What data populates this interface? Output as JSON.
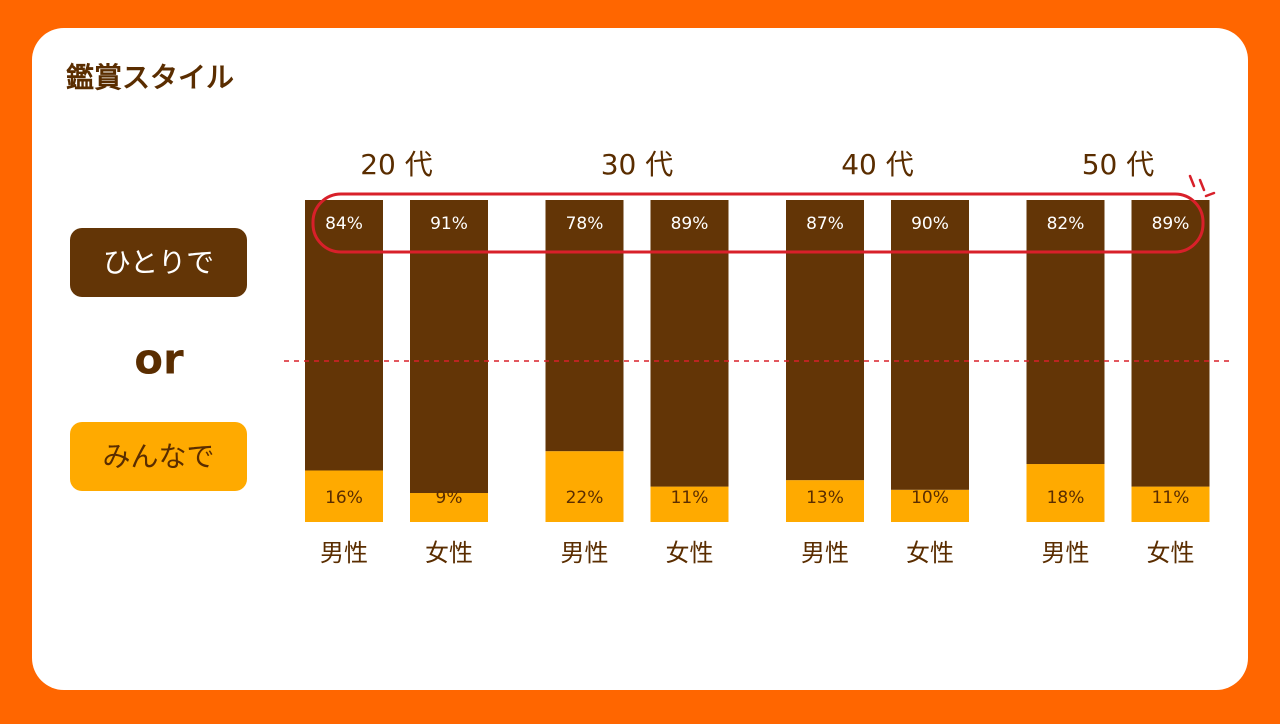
{
  "chart_data": {
    "type": "stacked_bar",
    "title": "鑑賞スタイル",
    "groups": [
      "20 代",
      "30 代",
      "40 代",
      "50 代"
    ],
    "categories": [
      "男性",
      "女性",
      "男性",
      "女性",
      "男性",
      "女性",
      "男性",
      "女性"
    ],
    "legend_separator": "or",
    "series": [
      {
        "name": "ひとりで",
        "color": "#633506",
        "text_color": "#ffffff",
        "values": [
          84,
          91,
          78,
          89,
          87,
          90,
          82,
          89
        ],
        "value_labels": [
          "84%",
          "91%",
          "78%",
          "89%",
          "87%",
          "90%",
          "82%",
          "89%"
        ]
      },
      {
        "name": "みんなで",
        "color": "#ffaa00",
        "text_color": "#5a2d00",
        "values": [
          16,
          9,
          22,
          11,
          13,
          10,
          18,
          11
        ],
        "value_labels": [
          "16%",
          "9%",
          "22%",
          "11%",
          "13%",
          "10%",
          "18%",
          "11%"
        ]
      }
    ],
    "ylim": [
      0,
      100
    ],
    "reference_line": 50
  }
}
